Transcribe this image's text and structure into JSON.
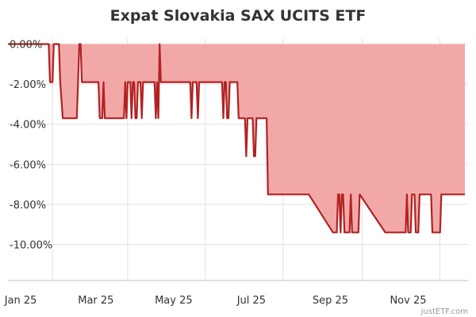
{
  "chart_data": {
    "type": "area",
    "title": "Expat Slovakia SAX UCITS ETF",
    "xlabel": "",
    "ylabel": "",
    "credit": "justETF.com",
    "x_range": [
      "2024-12-22",
      "2025-12-18"
    ],
    "ylim": [
      -11.8,
      0.3
    ],
    "y_ticks": [
      0,
      -2,
      -4,
      -6,
      -8,
      -10
    ],
    "y_tick_labels": [
      "0.00%",
      "-2.00%",
      "-4.00%",
      "-6.00%",
      "-8.00%",
      "-10.00%"
    ],
    "x_ticks": [
      "2025-01-01",
      "2025-03-01",
      "2025-05-01",
      "2025-07-01",
      "2025-09-01",
      "2025-11-01"
    ],
    "x_tick_labels": [
      "Jan 25",
      "Mar 25",
      "May 25",
      "Jul 25",
      "Sep 25",
      "Nov 25"
    ],
    "grid": true,
    "colors": {
      "line": "#b22222",
      "fill": "#f3a8a8"
    },
    "series": [
      {
        "x": [
          "2025-01-23",
          "2025-01-24",
          "2025-01-25",
          "2025-01-26",
          "2025-01-27",
          "2025-01-30",
          "2025-01-31",
          "2025-02-01",
          "2025-02-03",
          "2025-02-14",
          "2025-02-15",
          "2025-02-16",
          "2025-02-17",
          "2025-02-18",
          "2025-02-19",
          "2025-02-20",
          "2025-03-03",
          "2025-03-04",
          "2025-03-05",
          "2025-03-06",
          "2025-03-07",
          "2025-03-08",
          "2025-03-22",
          "2025-03-23",
          "2025-03-24",
          "2025-03-25",
          "2025-03-26",
          "2025-03-27",
          "2025-03-28",
          "2025-03-29",
          "2025-03-30",
          "2025-03-31",
          "2025-04-01",
          "2025-04-02",
          "2025-04-03",
          "2025-04-04",
          "2025-04-05",
          "2025-04-06",
          "2025-04-07",
          "2025-04-08",
          "2025-04-09",
          "2025-04-10",
          "2025-04-11",
          "2025-04-12",
          "2025-04-13",
          "2025-04-14",
          "2025-04-15",
          "2025-04-16",
          "2025-04-17",
          "2025-04-18",
          "2025-04-19",
          "2025-04-20",
          "2025-04-21",
          "2025-05-05",
          "2025-05-06",
          "2025-05-07",
          "2025-05-08",
          "2025-05-09",
          "2025-05-10",
          "2025-05-11",
          "2025-05-12",
          "2025-05-13",
          "2025-05-14",
          "2025-05-15",
          "2025-05-16",
          "2025-05-17",
          "2025-05-18",
          "2025-05-19",
          "2025-05-20",
          "2025-05-21",
          "2025-05-22",
          "2025-05-23",
          "2025-06-06",
          "2025-06-07",
          "2025-06-08",
          "2025-06-09",
          "2025-06-10",
          "2025-06-11",
          "2025-06-12",
          "2025-06-13",
          "2025-06-14",
          "2025-06-15",
          "2025-06-20",
          "2025-06-21",
          "2025-06-22",
          "2025-06-23",
          "2025-06-24",
          "2025-06-25",
          "2025-06-26",
          "2025-06-27",
          "2025-06-28",
          "2025-06-29",
          "2025-06-30",
          "2025-07-01",
          "2025-07-02",
          "2025-07-03",
          "2025-07-04",
          "2025-07-05",
          "2025-07-06",
          "2025-07-07",
          "2025-07-08",
          "2025-07-09",
          "2025-07-10",
          "2025-07-11",
          "2025-07-12",
          "2025-07-13",
          "2025-07-14",
          "2025-07-15",
          "2025-07-16",
          "2025-07-25",
          "2025-07-26",
          "2025-07-27",
          "2025-07-28",
          "2025-08-10",
          "2025-08-11",
          "2025-08-12",
          "2025-08-13",
          "2025-08-14",
          "2025-08-15",
          "2025-09-03",
          "2025-09-04",
          "2025-09-05",
          "2025-09-06",
          "2025-09-07",
          "2025-09-08",
          "2025-09-09",
          "2025-09-10",
          "2025-09-11",
          "2025-09-12",
          "2025-09-13",
          "2025-09-14",
          "2025-09-15",
          "2025-09-16",
          "2025-09-17",
          "2025-09-18",
          "2025-09-19",
          "2025-09-20",
          "2025-09-21",
          "2025-09-22",
          "2025-09-23",
          "2025-09-24",
          "2025-10-14",
          "2025-10-15",
          "2025-10-16",
          "2025-10-17",
          "2025-10-18",
          "2025-10-28",
          "2025-10-29",
          "2025-10-30",
          "2025-10-31",
          "2025-11-01",
          "2025-11-02",
          "2025-11-03",
          "2025-11-04",
          "2025-11-05",
          "2025-11-06",
          "2025-11-07",
          "2025-11-08",
          "2025-11-09",
          "2025-11-10",
          "2025-11-11",
          "2025-11-12",
          "2025-11-13",
          "2025-11-14",
          "2025-11-15",
          "2025-11-19",
          "2025-11-20",
          "2025-11-21",
          "2025-11-22",
          "2025-11-23",
          "2025-11-24",
          "2025-11-25",
          "2025-11-26",
          "2025-11-27",
          "2025-11-28",
          "2025-11-29",
          "2025-11-30",
          "2025-12-14"
        ],
        "values": [
          0.0,
          -1.9,
          -1.9,
          -1.9,
          0.0,
          0.0,
          0.0,
          -1.9,
          -3.7,
          -3.7,
          -1.9,
          0.0,
          0.0,
          -1.9,
          -1.9,
          -1.9,
          -1.9,
          -3.7,
          -3.7,
          -3.7,
          -1.9,
          -3.7,
          -3.7,
          -3.7,
          -1.9,
          -3.7,
          -1.9,
          -1.9,
          -1.9,
          -3.7,
          -1.9,
          -1.9,
          -3.7,
          -3.7,
          -1.9,
          -1.9,
          -1.9,
          -3.7,
          -1.9,
          -1.9,
          -1.9,
          -1.9,
          -1.9,
          -1.9,
          -1.9,
          -1.9,
          -1.9,
          -1.9,
          -3.7,
          -1.9,
          -3.7,
          0.0,
          -1.9,
          -1.9,
          -1.9,
          -1.9,
          -1.9,
          -1.9,
          -1.9,
          -1.9,
          -1.9,
          -1.9,
          -1.9,
          -3.7,
          -1.9,
          -1.9,
          -1.9,
          -1.9,
          -3.7,
          -1.9,
          -1.9,
          -1.9,
          -1.9,
          -1.9,
          -1.9,
          -3.7,
          -1.9,
          -1.9,
          -3.7,
          -3.7,
          -1.9,
          -1.9,
          -1.9,
          -3.7,
          -3.7,
          -3.7,
          -3.7,
          -3.7,
          -3.7,
          -5.6,
          -3.7,
          -3.7,
          -3.7,
          -3.7,
          -3.7,
          -5.6,
          -5.6,
          -3.7,
          -3.7,
          -3.7,
          -3.7,
          -3.7,
          -3.7,
          -3.7,
          -3.7,
          -3.7,
          -7.5,
          -7.5,
          -7.5,
          -7.5,
          -7.5,
          -7.5,
          -7.5,
          -7.5,
          -7.5,
          -7.5,
          -7.5,
          -7.5,
          -7.5,
          -9.4,
          -9.4,
          -9.4,
          -9.4,
          -7.5,
          -7.5,
          -9.4,
          -7.5,
          -7.5,
          -9.4,
          -9.4,
          -9.4,
          -9.4,
          -9.4,
          -7.5,
          -9.4,
          -9.4,
          -9.4,
          -9.4,
          -9.4,
          -9.4,
          -7.5,
          -9.4,
          -9.4,
          -9.4,
          -9.4,
          -9.4,
          -9.4,
          -9.4,
          -9.4,
          -7.5,
          -9.4,
          -9.4,
          -9.4,
          -7.5,
          -7.5,
          -7.5,
          -9.4,
          -9.4,
          -9.4,
          -7.5,
          -7.5,
          -7.5,
          -7.5,
          -7.5,
          -7.5,
          -7.5,
          -9.4,
          -9.4,
          -9.4,
          -9.4,
          -9.4,
          -9.4,
          -9.4,
          -7.5,
          -7.5,
          -7.5,
          -7.5,
          -7.5
        ]
      }
    ]
  }
}
